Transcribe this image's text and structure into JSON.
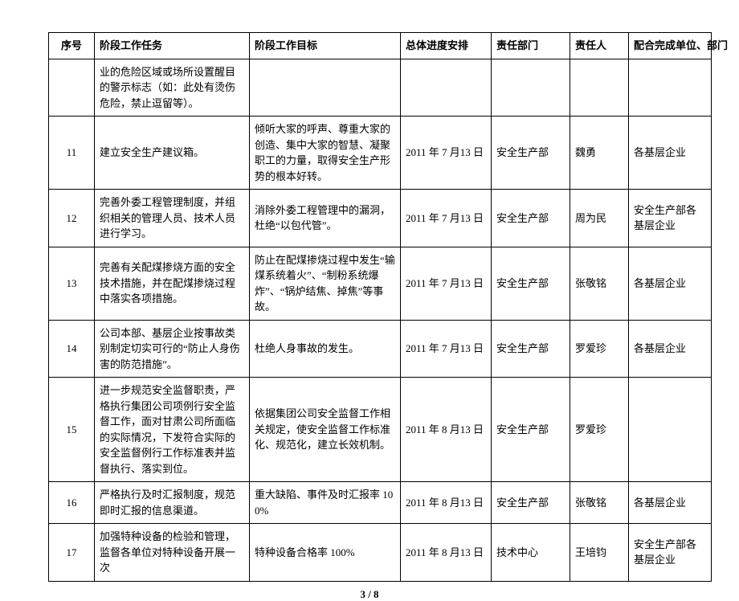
{
  "headers": {
    "seq": "序号",
    "task": "阶段工作任务",
    "goal": "阶段工作目标",
    "sched": "总体进度安排",
    "dept": "责任部门",
    "owner": "责任人",
    "coop": "配合完成单位、部门"
  },
  "rows": [
    {
      "seq": "",
      "task": "业的危险区域或场所设置醒目的警示标志（如：此处有烫伤危险，禁止逗留等）。",
      "goal": "",
      "sched": "",
      "dept": "",
      "owner": "",
      "coop": ""
    },
    {
      "seq": "11",
      "task": "建立安全生产建议箱。",
      "goal": "倾听大家的呼声、尊重大家的创造、集中大家的智慧、凝聚职工的力量，取得安全生产形势的根本好转。",
      "sched": "2011 年 7 月13 日",
      "dept": "安全生产部",
      "owner": "魏勇",
      "coop": "各基层企业"
    },
    {
      "seq": "12",
      "task": "完善外委工程管理制度，并组织相关的管理人员、技术人员进行学习。",
      "goal": "消除外委工程管理中的漏洞，杜绝“以包代管”。",
      "sched": "2011 年 7 月13 日",
      "dept": "安全生产部",
      "owner": "周为民",
      "coop": "安全生产部各基层企业"
    },
    {
      "seq": "13",
      "task": "完善有关配煤掺烧方面的安全技术措施，并在配煤掺烧过程中落实各项措施。",
      "goal": "防止在配煤掺烧过程中发生“输煤系统着火”、“制粉系统爆炸”、“锅炉结焦、掉焦”等事故。",
      "sched": "2011 年 7 月13 日",
      "dept": "安全生产部",
      "owner": "张敬铭",
      "coop": "各基层企业"
    },
    {
      "seq": "14",
      "task": "公司本部、基层企业按事故类别制定切实可行的“防止人身伤害的防范措施”。",
      "goal": "杜绝人身事故的发生。",
      "sched": "2011 年 7 月13 日",
      "dept": "安全生产部",
      "owner": "罗爱珍",
      "coop": "各基层企业"
    },
    {
      "seq": "15",
      "task": "进一步规范安全监督职责，严格执行集团公司项例行安全监督工作，面对甘肃公司所面临的实际情况，下发符合实际的安全监督例行工作标准表并监督执行、落实到位。",
      "goal": "依据集团公司安全监督工作相关规定，使安全监督工作标准化、规范化，建立长效机制。",
      "sched": "2011 年 8 月13 日",
      "dept": "安全生产部",
      "owner": "罗爱珍",
      "coop": ""
    },
    {
      "seq": "16",
      "task": "严格执行及时汇报制度，规范即时汇报的信息渠道。",
      "goal": "重大缺陷、事件及时汇报率 100%",
      "sched": "2011 年 8 月13 日",
      "dept": "安全生产部",
      "owner": "张敬铭",
      "coop": "各基层企业"
    },
    {
      "seq": "17",
      "task": "加强特种设备的检验和管理，监督各单位对特种设备开展一次",
      "goal": "特种设备合格率 100%",
      "sched": "2011 年 8 月13 日",
      "dept": "技术中心",
      "owner": "王培钧",
      "coop": "安全生产部各基层企业"
    }
  ],
  "footer": "3 / 8"
}
